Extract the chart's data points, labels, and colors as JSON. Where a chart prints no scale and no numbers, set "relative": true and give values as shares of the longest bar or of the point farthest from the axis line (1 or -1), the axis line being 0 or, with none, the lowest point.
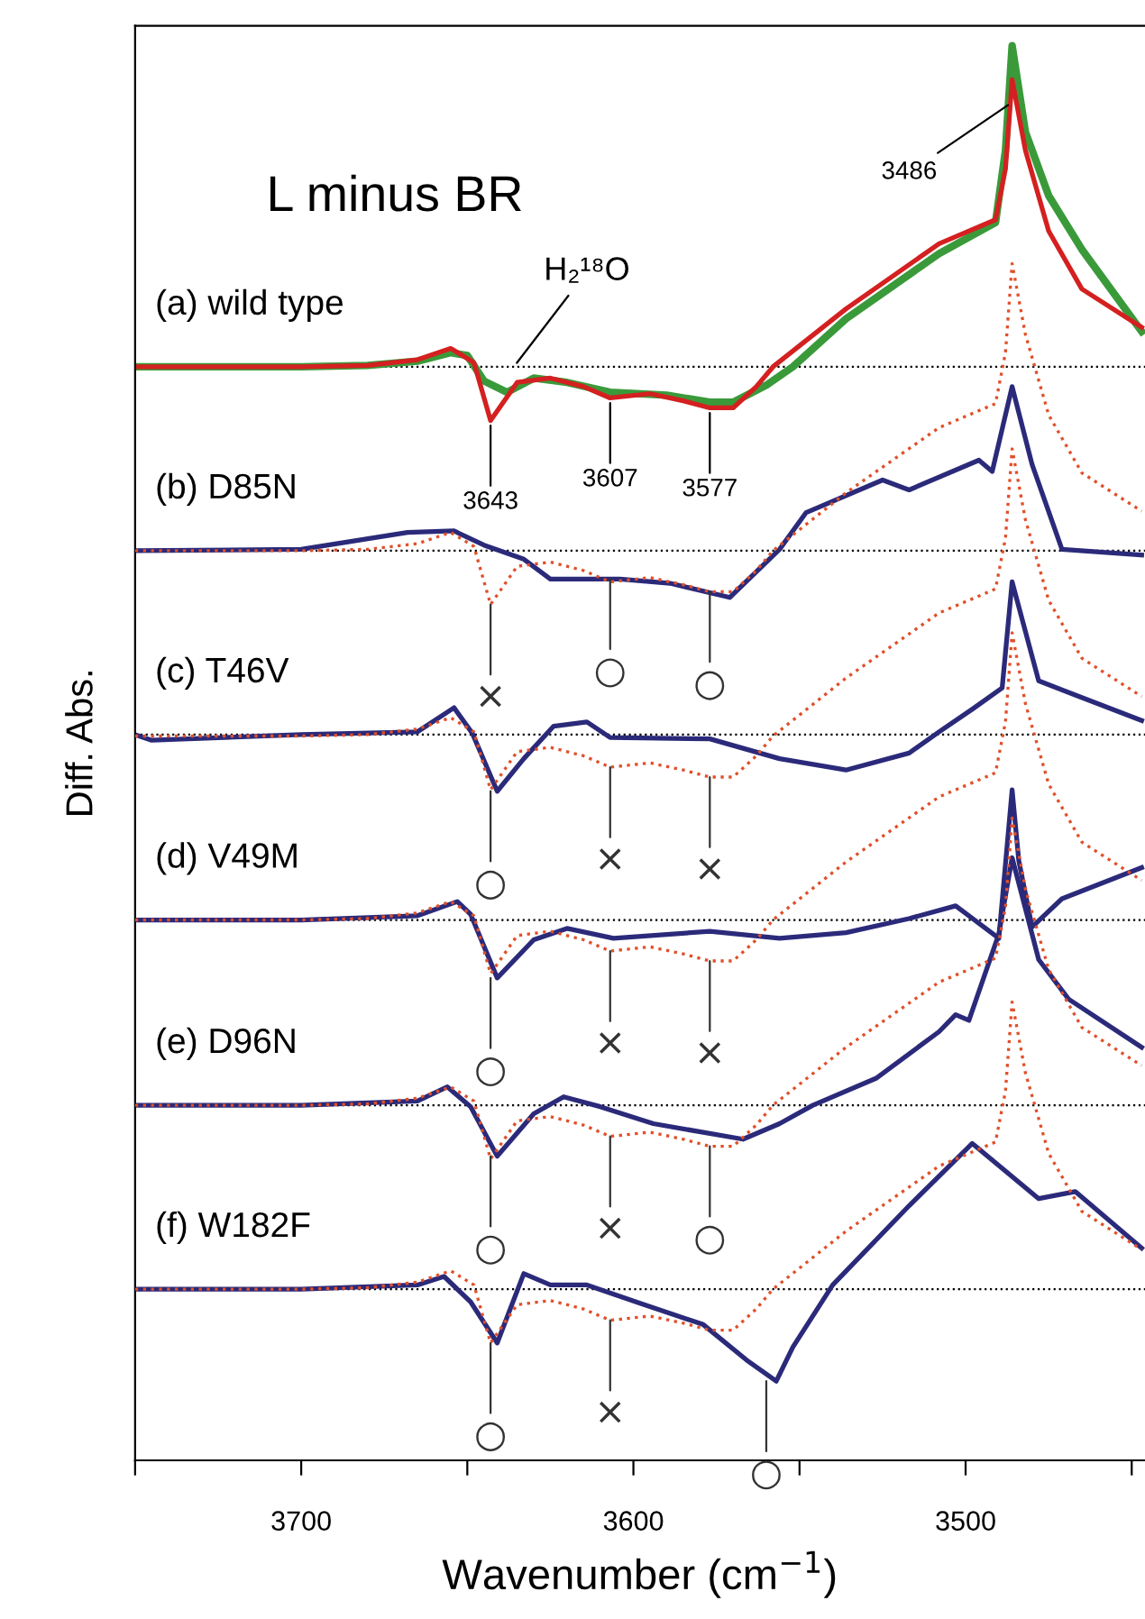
{
  "chart_data": {
    "type": "line",
    "title": "L minus BR",
    "xlabel": "Wavenumber (cm$^{−1}$)",
    "ylabel": "Diff. Abs.",
    "relative": true,
    "legend": false,
    "grid": false,
    "line_style": "solid",
    "marker": "none",
    "xlim": [
      3750,
      3446
    ],
    "xticks": [
      {
        "value": 3750,
        "label": null
      },
      3700,
      {
        "value": 3650,
        "label": null
      },
      3600,
      {
        "value": 3550,
        "label": null
      },
      3500,
      {
        "value": 3450,
        "label": null
      }
    ],
    "series": [
      {
        "name": "(a) wild type",
        "color": "#d42020",
        "x": [
          3750,
          3700,
          3680,
          3665,
          3655,
          3648,
          3643,
          3635,
          3625,
          3615,
          3607,
          3595,
          3585,
          3577,
          3570,
          3563,
          3558,
          3536,
          3508,
          3491,
          3488,
          3486,
          3482,
          3475,
          3465,
          3447
        ],
        "values": [
          0.773,
          0.773,
          0.774,
          0.778,
          0.786,
          0.776,
          0.735,
          0.762,
          0.765,
          0.759,
          0.751,
          0.754,
          0.749,
          0.744,
          0.744,
          0.759,
          0.773,
          0.814,
          0.86,
          0.877,
          0.913,
          0.976,
          0.926,
          0.869,
          0.828,
          0.801
        ]
      },
      {
        "color": "#3a9a3a",
        "x": [
          3750,
          3700,
          3680,
          3665,
          3655,
          3650,
          3645,
          3638,
          3630,
          3620,
          3607,
          3590,
          3577,
          3570,
          3560,
          3552,
          3536,
          3508,
          3491,
          3488,
          3486,
          3482,
          3475,
          3465,
          3447
        ],
        "values": [
          0.773,
          0.773,
          0.774,
          0.777,
          0.783,
          0.781,
          0.763,
          0.755,
          0.765,
          0.762,
          0.755,
          0.753,
          0.748,
          0.748,
          0.76,
          0.773,
          0.807,
          0.853,
          0.875,
          0.926,
          1.0,
          0.939,
          0.894,
          0.856,
          0.798
        ]
      },
      {
        "color": "#e0502a",
        "line_style": "dotted",
        "x": [
          3750,
          3700,
          3680,
          3665,
          3655,
          3648,
          3643,
          3635,
          3625,
          3615,
          3607,
          3595,
          3585,
          3577,
          3570,
          3563,
          3558,
          3536,
          3508,
          3491,
          3488,
          3486,
          3482,
          3475,
          3465,
          3447
        ],
        "values": [
          0.643,
          0.643,
          0.644,
          0.648,
          0.656,
          0.646,
          0.605,
          0.632,
          0.635,
          0.629,
          0.621,
          0.624,
          0.619,
          0.614,
          0.614,
          0.629,
          0.643,
          0.684,
          0.73,
          0.747,
          0.783,
          0.846,
          0.796,
          0.739,
          0.698,
          0.671
        ]
      },
      {
        "name": "(b) D85N",
        "color": "#2b2a7a",
        "x": [
          3750,
          3700,
          3668,
          3654,
          3645,
          3633,
          3625,
          3604,
          3589,
          3571,
          3556,
          3548,
          3525,
          3517,
          3496,
          3492,
          3486,
          3480,
          3471,
          3447
        ],
        "values": [
          0.643,
          0.644,
          0.656,
          0.657,
          0.647,
          0.637,
          0.623,
          0.623,
          0.62,
          0.61,
          0.644,
          0.67,
          0.693,
          0.686,
          0.707,
          0.699,
          0.759,
          0.704,
          0.644,
          0.64
        ]
      },
      {
        "color": "#e0502a",
        "line_style": "dotted",
        "x": [
          3750,
          3700,
          3680,
          3665,
          3655,
          3648,
          3643,
          3635,
          3625,
          3615,
          3607,
          3595,
          3585,
          3577,
          3570,
          3563,
          3558,
          3536,
          3508,
          3491,
          3488,
          3486,
          3482,
          3475,
          3465,
          3447
        ],
        "values": [
          0.512,
          0.512,
          0.513,
          0.517,
          0.525,
          0.515,
          0.474,
          0.501,
          0.504,
          0.498,
          0.49,
          0.493,
          0.488,
          0.483,
          0.483,
          0.498,
          0.512,
          0.553,
          0.599,
          0.616,
          0.652,
          0.715,
          0.665,
          0.608,
          0.567,
          0.54
        ]
      },
      {
        "name": "(c) T46V",
        "color": "#2b2a7a",
        "x": [
          3750,
          3745,
          3700,
          3665,
          3654,
          3648.5,
          3641,
          3633,
          3624,
          3614,
          3607,
          3577,
          3556,
          3536,
          3517,
          3508,
          3498,
          3489,
          3486,
          3478,
          3467,
          3447
        ],
        "values": [
          0.513,
          0.509,
          0.513,
          0.515,
          0.532,
          0.514,
          0.473,
          0.496,
          0.519,
          0.522,
          0.511,
          0.51,
          0.496,
          0.488,
          0.5,
          0.515,
          0.531,
          0.546,
          0.621,
          0.551,
          0.541,
          0.523
        ]
      },
      {
        "color": "#e0502a",
        "line_style": "dotted",
        "x": [
          3750,
          3700,
          3680,
          3665,
          3655,
          3648,
          3643,
          3635,
          3625,
          3615,
          3607,
          3595,
          3585,
          3577,
          3570,
          3563,
          3558,
          3536,
          3508,
          3491,
          3488,
          3486,
          3482,
          3475,
          3465,
          3447
        ],
        "values": [
          0.382,
          0.382,
          0.383,
          0.387,
          0.395,
          0.385,
          0.344,
          0.371,
          0.374,
          0.368,
          0.36,
          0.363,
          0.358,
          0.353,
          0.353,
          0.368,
          0.382,
          0.423,
          0.469,
          0.486,
          0.522,
          0.585,
          0.535,
          0.478,
          0.437,
          0.41
        ]
      },
      {
        "name": "(d) V49M",
        "color": "#2b2a7a",
        "x": [
          3750,
          3700,
          3665,
          3653,
          3649,
          3641,
          3630,
          3620,
          3606,
          3577,
          3556,
          3536,
          3517,
          3503,
          3490,
          3486,
          3484,
          3480,
          3471,
          3447
        ],
        "values": [
          0.382,
          0.382,
          0.385,
          0.395,
          0.386,
          0.341,
          0.368,
          0.376,
          0.369,
          0.374,
          0.369,
          0.373,
          0.383,
          0.392,
          0.369,
          0.474,
          0.424,
          0.377,
          0.397,
          0.419
        ]
      },
      {
        "color": "#e0502a",
        "line_style": "dotted",
        "x": [
          3750,
          3700,
          3680,
          3665,
          3655,
          3648,
          3643,
          3635,
          3625,
          3615,
          3607,
          3595,
          3585,
          3577,
          3570,
          3563,
          3558,
          3536,
          3508,
          3491,
          3488,
          3486,
          3482,
          3475,
          3465,
          3447
        ],
        "values": [
          0.251,
          0.251,
          0.252,
          0.256,
          0.264,
          0.254,
          0.213,
          0.24,
          0.243,
          0.237,
          0.229,
          0.232,
          0.227,
          0.222,
          0.222,
          0.237,
          0.251,
          0.292,
          0.338,
          0.355,
          0.391,
          0.454,
          0.404,
          0.347,
          0.306,
          0.279
        ]
      },
      {
        "name": "(e) D96N",
        "color": "#2b2a7a",
        "x": [
          3750,
          3700,
          3665,
          3656,
          3649,
          3641,
          3630,
          3621,
          3610,
          3594,
          3567,
          3556,
          3546,
          3527,
          3508,
          3503,
          3499,
          3490,
          3486,
          3478,
          3469,
          3447
        ],
        "values": [
          0.251,
          0.251,
          0.254,
          0.264,
          0.25,
          0.215,
          0.245,
          0.257,
          0.25,
          0.238,
          0.227,
          0.238,
          0.251,
          0.27,
          0.303,
          0.315,
          0.311,
          0.372,
          0.426,
          0.354,
          0.326,
          0.292
        ]
      },
      {
        "color": "#e0502a",
        "line_style": "dotted",
        "x": [
          3750,
          3700,
          3680,
          3665,
          3655,
          3648,
          3643,
          3635,
          3625,
          3615,
          3607,
          3595,
          3585,
          3577,
          3570,
          3563,
          3558,
          3536,
          3508,
          3491,
          3488,
          3486,
          3482,
          3475,
          3465,
          3447
        ],
        "values": [
          0.121,
          0.121,
          0.122,
          0.126,
          0.134,
          0.124,
          0.083,
          0.11,
          0.113,
          0.107,
          0.099,
          0.102,
          0.097,
          0.092,
          0.092,
          0.107,
          0.121,
          0.162,
          0.208,
          0.225,
          0.261,
          0.324,
          0.274,
          0.217,
          0.176,
          0.149
        ]
      },
      {
        "name": "(f) W182F",
        "color": "#2b2a7a",
        "x": [
          3750,
          3700,
          3665,
          3657,
          3649,
          3641,
          3633,
          3625,
          3614,
          3598,
          3579,
          3566,
          3557,
          3552,
          3540,
          3517,
          3498,
          3478,
          3467,
          3447
        ],
        "values": [
          0.121,
          0.121,
          0.124,
          0.13,
          0.112,
          0.083,
          0.132,
          0.124,
          0.124,
          0.111,
          0.096,
          0.071,
          0.056,
          0.08,
          0.124,
          0.18,
          0.224,
          0.185,
          0.19,
          0.15
        ]
      }
    ],
    "ref_lines": [
      {
        "axis": "y",
        "value": 0.773,
        "color": "#000000",
        "line_style": "dotted"
      },
      {
        "axis": "y",
        "value": 0.643,
        "color": "#000000",
        "line_style": "dotted"
      },
      {
        "axis": "y",
        "value": 0.513,
        "color": "#000000",
        "line_style": "dotted"
      },
      {
        "axis": "y",
        "value": 0.382,
        "color": "#000000",
        "line_style": "dotted"
      },
      {
        "axis": "y",
        "value": 0.251,
        "color": "#000000",
        "line_style": "dotted"
      },
      {
        "axis": "y",
        "value": 0.121,
        "color": "#000000",
        "line_style": "dotted"
      }
    ],
    "annotations": [
      {
        "text": "H₂¹⁸O",
        "x": 3636,
        "y": 0.773
      },
      {
        "text": "3486",
        "x": 3486,
        "y": 0.96
      },
      {
        "text": "3643",
        "x": 3643,
        "y": 0.735
      },
      {
        "text": "3607",
        "x": 3607,
        "y": 0.751
      },
      {
        "text": "3577",
        "x": 3577,
        "y": 0.744
      },
      {
        "text": "×",
        "x": 3643,
        "y": 0.605
      },
      {
        "text": "○",
        "x": 3607,
        "y": 0.623
      },
      {
        "text": "○",
        "x": 3577,
        "y": 0.614
      },
      {
        "text": "○",
        "x": 3643,
        "y": 0.473
      },
      {
        "text": "×",
        "x": 3607,
        "y": 0.49
      },
      {
        "text": "×",
        "x": 3577,
        "y": 0.483
      },
      {
        "text": "○",
        "x": 3643,
        "y": 0.341
      },
      {
        "text": "×",
        "x": 3607,
        "y": 0.36
      },
      {
        "text": "×",
        "x": 3577,
        "y": 0.353
      },
      {
        "text": "○",
        "x": 3643,
        "y": 0.215
      },
      {
        "text": "×",
        "x": 3607,
        "y": 0.229
      },
      {
        "text": "○",
        "x": 3577,
        "y": 0.222
      },
      {
        "text": "○",
        "x": 3643,
        "y": 0.083
      },
      {
        "text": "×",
        "x": 3607,
        "y": 0.099
      },
      {
        "text": "○",
        "x": 3560,
        "y": 0.056
      }
    ]
  }
}
